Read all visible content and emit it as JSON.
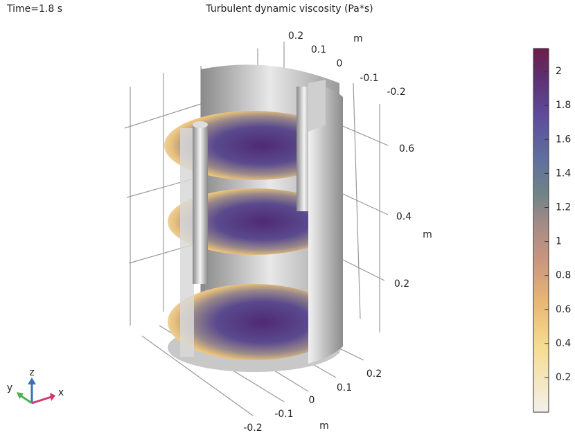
{
  "header": {
    "time": "Time=1.8 s",
    "title": "Turbulent dynamic viscosity (Pa*s)"
  },
  "axes": {
    "z_ticks": [
      0.2,
      0.4,
      0.6
    ],
    "z_unit": "m",
    "top_ticks": [
      0.2,
      0.1,
      0,
      -0.1,
      -0.2
    ],
    "top_unit": "m",
    "bottom_ticks": [
      0.2,
      0.1,
      0,
      -0.1,
      -0.2
    ],
    "bottom_unit": "m"
  },
  "colorbar": {
    "ticks": [
      0.2,
      0.4,
      0.6,
      0.8,
      1,
      1.2,
      1.4,
      1.6,
      1.8,
      2
    ]
  },
  "triad": {
    "x": "x",
    "y": "y",
    "z": "z"
  }
}
